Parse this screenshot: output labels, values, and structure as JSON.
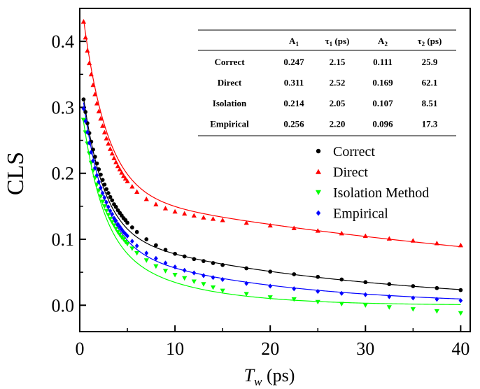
{
  "chart_data": {
    "type": "scatter",
    "xlabel_main": "T",
    "xlabel_sub": "w",
    "xlabel_unit": " (ps)",
    "ylabel": "CLS",
    "xlim": [
      0,
      41
    ],
    "ylim": [
      -0.04,
      0.45
    ],
    "x_ticks": [
      0,
      10,
      20,
      30,
      40
    ],
    "x_tick_labels": [
      "0",
      "10",
      "20",
      "30",
      "40"
    ],
    "y_ticks": [
      0.0,
      0.1,
      0.2,
      0.3,
      0.4
    ],
    "y_tick_labels": [
      "0.0",
      "0.1",
      "0.2",
      "0.3",
      "0.4"
    ],
    "x": [
      0.4,
      0.6,
      0.8,
      1.0,
      1.2,
      1.4,
      1.6,
      1.8,
      2.0,
      2.2,
      2.4,
      2.6,
      2.8,
      3.0,
      3.2,
      3.4,
      3.6,
      3.8,
      4.0,
      4.2,
      4.4,
      4.6,
      4.8,
      5.0,
      5.5,
      6.0,
      7.0,
      8.0,
      9.0,
      10.0,
      11.0,
      12.0,
      13.0,
      14.0,
      15.0,
      17.5,
      20.0,
      22.5,
      25.0,
      27.5,
      30.0,
      32.5,
      35.0,
      37.5,
      40.0
    ],
    "series": [
      {
        "name": "Correct",
        "color": "#000000",
        "marker": "circle",
        "fit": {
          "y0": 0.0,
          "A1": 0.247,
          "t1": 2.15,
          "A2": 0.111,
          "t2": 25.9
        },
        "values": [
          0.312,
          0.293,
          0.276,
          0.261,
          0.248,
          0.236,
          0.225,
          0.215,
          0.206,
          0.198,
          0.19,
          0.183,
          0.176,
          0.17,
          0.164,
          0.159,
          0.153,
          0.149,
          0.144,
          0.14,
          0.136,
          0.132,
          0.129,
          0.125,
          0.118,
          0.111,
          0.1,
          0.091,
          0.084,
          0.078,
          0.074,
          0.07,
          0.067,
          0.064,
          0.061,
          0.056,
          0.051,
          0.047,
          0.043,
          0.039,
          0.035,
          0.032,
          0.029,
          0.026,
          0.023
        ]
      },
      {
        "name": "Direct",
        "color": "#ff0000",
        "marker": "triangle-up",
        "fit": {
          "y0": 0.0,
          "A1": 0.311,
          "t1": 2.52,
          "A2": 0.169,
          "t2": 62.1
        },
        "values": [
          0.43,
          0.406,
          0.386,
          0.367,
          0.35,
          0.334,
          0.32,
          0.306,
          0.294,
          0.283,
          0.272,
          0.262,
          0.253,
          0.245,
          0.237,
          0.23,
          0.223,
          0.217,
          0.211,
          0.206,
          0.201,
          0.196,
          0.192,
          0.188,
          0.18,
          0.172,
          0.161,
          0.153,
          0.147,
          0.142,
          0.139,
          0.136,
          0.133,
          0.131,
          0.129,
          0.125,
          0.121,
          0.117,
          0.113,
          0.109,
          0.105,
          0.101,
          0.098,
          0.094,
          0.091
        ]
      },
      {
        "name": "Isolation Method",
        "color": "#00ff00",
        "marker": "triangle-down",
        "fit": {
          "y0": 0.0,
          "A1": 0.214,
          "t1": 2.05,
          "A2": 0.107,
          "t2": 8.51
        },
        "values": [
          0.281,
          0.262,
          0.245,
          0.23,
          0.216,
          0.204,
          0.193,
          0.183,
          0.174,
          0.165,
          0.157,
          0.15,
          0.143,
          0.137,
          0.131,
          0.126,
          0.121,
          0.116,
          0.111,
          0.107,
          0.103,
          0.1,
          0.096,
          0.093,
          0.086,
          0.079,
          0.068,
          0.059,
          0.052,
          0.046,
          0.041,
          0.036,
          0.032,
          0.027,
          0.022,
          0.017,
          0.012,
          0.009,
          0.005,
          0.002,
          0.0,
          -0.003,
          -0.006,
          -0.009,
          -0.012
        ]
      },
      {
        "name": "Empirical",
        "color": "#0000ff",
        "marker": "diamond",
        "fit": {
          "y0": 0.0,
          "A1": 0.256,
          "t1": 2.2,
          "A2": 0.096,
          "t2": 17.3
        },
        "values": [
          0.298,
          0.279,
          0.262,
          0.246,
          0.232,
          0.219,
          0.208,
          0.197,
          0.187,
          0.178,
          0.17,
          0.163,
          0.156,
          0.149,
          0.143,
          0.138,
          0.132,
          0.128,
          0.123,
          0.119,
          0.115,
          0.111,
          0.108,
          0.105,
          0.097,
          0.09,
          0.079,
          0.071,
          0.064,
          0.058,
          0.053,
          0.049,
          0.045,
          0.042,
          0.039,
          0.033,
          0.029,
          0.025,
          0.021,
          0.018,
          0.016,
          0.013,
          0.011,
          0.009,
          0.007
        ]
      }
    ],
    "legend": {
      "placement": "middle-right",
      "entries": [
        "Correct",
        "Direct",
        "Isolation Method",
        "Empirical"
      ]
    },
    "table": {
      "header": [
        {
          "main": "A",
          "sub": "1",
          "tail": ""
        },
        {
          "main": "τ",
          "sub": "1",
          "tail": " (ps)"
        },
        {
          "main": "A",
          "sub": "2",
          "tail": ""
        },
        {
          "main": "τ",
          "sub": "2",
          "tail": " (ps)"
        }
      ],
      "rows": [
        {
          "label": "Correct",
          "cells": [
            "0.247",
            "2.15",
            "0.111",
            "25.9"
          ]
        },
        {
          "label": "Direct",
          "cells": [
            "0.311",
            "2.52",
            "0.169",
            "62.1"
          ]
        },
        {
          "label": "Isolation",
          "cells": [
            "0.214",
            "2.05",
            "0.107",
            "8.51"
          ]
        },
        {
          "label": "Empirical",
          "cells": [
            "0.256",
            "2.20",
            "0.096",
            "17.3"
          ]
        }
      ]
    }
  }
}
